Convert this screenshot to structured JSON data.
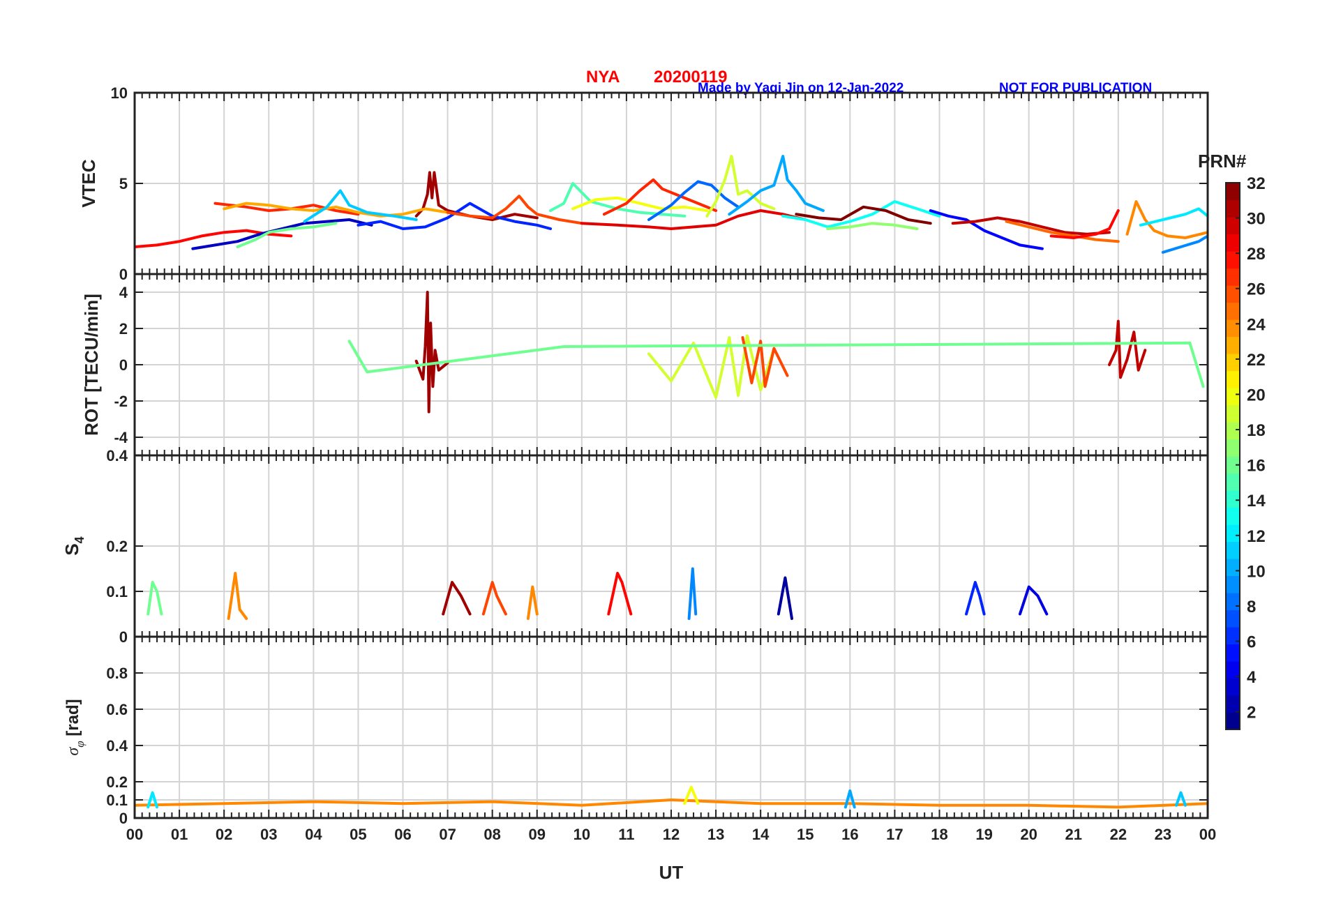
{
  "header": {
    "station": "NYA",
    "date": "20200119",
    "credit": "Made by Yaqi Jin on 12-Jan-2022",
    "notice": "NOT FOR PUBLICATION",
    "title_color": "#ff0000",
    "credit_color": "#0000ff"
  },
  "colorbar": {
    "title": "PRN#",
    "ticks": [
      "2",
      "4",
      "6",
      "8",
      "10",
      "12",
      "14",
      "16",
      "18",
      "20",
      "22",
      "24",
      "26",
      "28",
      "30",
      "32"
    ],
    "range": [
      1,
      32
    ],
    "colormap": "jet"
  },
  "x_axis": {
    "label": "UT",
    "ticks": [
      "00",
      "01",
      "02",
      "03",
      "04",
      "05",
      "06",
      "07",
      "08",
      "09",
      "10",
      "11",
      "12",
      "13",
      "14",
      "15",
      "16",
      "17",
      "18",
      "19",
      "20",
      "21",
      "22",
      "23",
      "00"
    ],
    "range_hours": [
      0,
      24
    ]
  },
  "chart_data": [
    {
      "type": "line",
      "id": "vtec",
      "ylabel": "VTEC",
      "ylim": [
        0,
        10
      ],
      "yticks": [
        "0",
        "5",
        "10"
      ],
      "grid": true,
      "series": [
        {
          "prn": 31,
          "x": [
            6.3,
            6.45,
            6.55,
            6.6,
            6.65,
            6.7,
            6.8,
            7.0,
            7.5,
            8.0,
            8.5,
            9.0
          ],
          "y": [
            3.2,
            3.6,
            4.4,
            5.6,
            4.2,
            5.6,
            3.8,
            3.5,
            3.2,
            3.0,
            3.3,
            3.1
          ]
        },
        {
          "prn": 28,
          "x": [
            0.0,
            0.5,
            1.0,
            1.5,
            2.0,
            2.5,
            3.0,
            3.5
          ],
          "y": [
            1.5,
            1.6,
            1.8,
            2.1,
            2.3,
            2.4,
            2.2,
            2.1
          ]
        },
        {
          "prn": 27,
          "x": [
            1.8,
            2.5,
            3.0,
            3.5,
            4.0,
            4.5,
            5.0
          ],
          "y": [
            3.9,
            3.7,
            3.5,
            3.6,
            3.8,
            3.5,
            3.3
          ]
        },
        {
          "prn": 23,
          "x": [
            2.0,
            2.5,
            3.0,
            3.5,
            4.0,
            4.5,
            5.0,
            5.5,
            6.0,
            6.5,
            7.0
          ],
          "y": [
            3.6,
            3.9,
            3.8,
            3.6,
            3.5,
            3.7,
            3.4,
            3.2,
            3.3,
            3.6,
            3.4
          ]
        },
        {
          "prn": 3,
          "x": [
            1.3,
            1.8,
            2.3,
            2.8,
            3.3,
            3.8,
            4.3,
            4.8,
            5.3
          ],
          "y": [
            1.4,
            1.6,
            1.8,
            2.2,
            2.5,
            2.8,
            2.9,
            3.0,
            2.7
          ]
        },
        {
          "prn": 11,
          "x": [
            3.8,
            4.3,
            4.6,
            4.8,
            5.2,
            5.8,
            6.3
          ],
          "y": [
            2.9,
            3.7,
            4.6,
            3.8,
            3.4,
            3.2,
            3.0
          ]
        },
        {
          "prn": 16,
          "x": [
            2.3,
            2.7,
            3.0,
            3.5,
            4.0,
            4.5
          ],
          "y": [
            1.5,
            1.9,
            2.3,
            2.5,
            2.6,
            2.8
          ]
        },
        {
          "prn": 6,
          "x": [
            5.0,
            5.5,
            6.0,
            6.5,
            7.0,
            7.5,
            8.0,
            8.5,
            9.0,
            9.3
          ],
          "y": [
            2.7,
            2.9,
            2.5,
            2.6,
            3.1,
            3.9,
            3.2,
            2.9,
            2.7,
            2.5
          ]
        },
        {
          "prn": 26,
          "x": [
            7.0,
            7.5,
            8.0,
            8.3,
            8.6,
            8.8,
            9.0,
            9.5,
            10.0
          ],
          "y": [
            3.4,
            3.2,
            3.1,
            3.6,
            4.3,
            3.7,
            3.3,
            3.0,
            2.8
          ]
        },
        {
          "prn": 15,
          "x": [
            9.3,
            9.6,
            9.8,
            10.2,
            10.8,
            11.3,
            11.8,
            12.3
          ],
          "y": [
            3.5,
            3.9,
            5.0,
            4.0,
            3.6,
            3.4,
            3.3,
            3.2
          ]
        },
        {
          "prn": 20,
          "x": [
            9.8,
            10.3,
            10.8,
            11.3,
            11.8,
            12.3,
            12.8
          ],
          "y": [
            3.6,
            4.1,
            4.2,
            3.9,
            3.6,
            3.7,
            3.5
          ]
        },
        {
          "prn": 27,
          "x": [
            10.5,
            11.0,
            11.3,
            11.6,
            11.8,
            12.1,
            12.6,
            13.0
          ],
          "y": [
            3.3,
            3.9,
            4.6,
            5.2,
            4.7,
            4.4,
            3.9,
            3.5
          ]
        },
        {
          "prn": 8,
          "x": [
            11.5,
            12.0,
            12.3,
            12.6,
            12.9,
            13.2,
            13.5
          ],
          "y": [
            3.0,
            3.8,
            4.5,
            5.1,
            4.9,
            4.2,
            3.7
          ]
        },
        {
          "prn": 19,
          "x": [
            12.8,
            13.0,
            13.2,
            13.35,
            13.5,
            13.7,
            14.0,
            14.3
          ],
          "y": [
            3.2,
            4.0,
            5.2,
            6.5,
            4.4,
            4.6,
            3.9,
            3.6
          ]
        },
        {
          "prn": 10,
          "x": [
            13.3,
            13.7,
            14.0,
            14.3,
            14.5,
            14.6,
            14.8,
            15.0,
            15.4
          ],
          "y": [
            3.3,
            4.0,
            4.6,
            4.9,
            6.5,
            5.2,
            4.6,
            3.9,
            3.5
          ]
        },
        {
          "prn": 29,
          "x": [
            10.0,
            10.8,
            11.5,
            12.0,
            12.5,
            13.0,
            13.5,
            14.0,
            14.5,
            15.0
          ],
          "y": [
            2.8,
            2.7,
            2.6,
            2.5,
            2.6,
            2.7,
            3.2,
            3.5,
            3.3,
            3.0
          ]
        },
        {
          "prn": 13,
          "x": [
            14.5,
            15.0,
            15.5,
            16.0,
            16.5,
            17.0,
            17.5,
            18.0
          ],
          "y": [
            3.2,
            3.0,
            2.6,
            2.9,
            3.3,
            4.0,
            3.6,
            3.2
          ]
        },
        {
          "prn": 32,
          "x": [
            14.8,
            15.3,
            15.8,
            16.3,
            16.8,
            17.3,
            17.8
          ],
          "y": [
            3.3,
            3.1,
            3.0,
            3.7,
            3.5,
            3.0,
            2.8
          ]
        },
        {
          "prn": 17,
          "x": [
            15.5,
            16.0,
            16.5,
            17.0,
            17.5
          ],
          "y": [
            2.5,
            2.6,
            2.8,
            2.7,
            2.5
          ]
        },
        {
          "prn": 5,
          "x": [
            17.8,
            18.2,
            18.6,
            19.0,
            19.4,
            19.8,
            20.3
          ],
          "y": [
            3.5,
            3.2,
            3.0,
            2.4,
            2.0,
            1.6,
            1.4
          ]
        },
        {
          "prn": 30,
          "x": [
            18.3,
            18.8,
            19.3,
            19.8,
            20.3,
            20.8,
            21.3,
            21.8
          ],
          "y": [
            2.8,
            2.9,
            3.1,
            2.9,
            2.6,
            2.3,
            2.2,
            2.3
          ]
        },
        {
          "prn": 25,
          "x": [
            19.5,
            20.0,
            20.5,
            21.0,
            21.5,
            22.0
          ],
          "y": [
            2.9,
            2.6,
            2.3,
            2.1,
            1.9,
            1.8
          ]
        },
        {
          "prn": 28,
          "x": [
            20.5,
            21.0,
            21.5,
            21.8,
            22.0
          ],
          "y": [
            2.1,
            2.0,
            2.2,
            2.5,
            3.5
          ]
        },
        {
          "prn": 24,
          "x": [
            22.2,
            22.4,
            22.6,
            22.8,
            23.1,
            23.5,
            24.0
          ],
          "y": [
            2.2,
            4.0,
            3.0,
            2.4,
            2.1,
            2.0,
            2.3
          ]
        },
        {
          "prn": 9,
          "x": [
            23.0,
            23.4,
            23.8,
            24.0
          ],
          "y": [
            1.2,
            1.5,
            1.8,
            2.1
          ]
        },
        {
          "prn": 12,
          "x": [
            22.5,
            23.0,
            23.5,
            23.8,
            24.0
          ],
          "y": [
            2.7,
            3.0,
            3.3,
            3.6,
            3.2
          ]
        }
      ]
    },
    {
      "type": "line",
      "id": "rot",
      "ylabel": "ROT [TECU/min]",
      "ylim": [
        -5,
        5
      ],
      "yticks": [
        "-4",
        "-2",
        "0",
        "2",
        "4"
      ],
      "grid": true,
      "series": [
        {
          "prn": 31,
          "x": [
            6.3,
            6.45,
            6.5,
            6.55,
            6.58,
            6.62,
            6.67,
            6.72,
            6.8,
            7.0
          ],
          "y": [
            0.2,
            -0.8,
            1.0,
            4.0,
            -2.6,
            2.3,
            -1.2,
            0.8,
            -0.3,
            0.1
          ]
        },
        {
          "prn": 30,
          "x": [
            21.8,
            21.95,
            22.0,
            22.05,
            22.2,
            22.35,
            22.45,
            22.6
          ],
          "y": [
            0.0,
            0.8,
            2.4,
            -0.7,
            0.3,
            1.8,
            -0.3,
            0.8
          ]
        },
        {
          "prn": 19,
          "x": [
            11.5,
            12.0,
            12.5,
            13.0,
            13.3,
            13.5,
            13.7,
            14.0,
            14.3
          ],
          "y": [
            0.6,
            -0.9,
            1.2,
            -1.8,
            1.5,
            -1.7,
            1.6,
            -1.4,
            0.9
          ]
        },
        {
          "prn": 26,
          "x": [
            13.6,
            13.8,
            14.0,
            14.1,
            14.3,
            14.6
          ],
          "y": [
            1.5,
            -1.0,
            1.3,
            -1.2,
            0.9,
            -0.6
          ]
        },
        {
          "prn": 16,
          "x": [
            4.8,
            5.2,
            9.6,
            23.6,
            23.9
          ],
          "y": [
            1.3,
            -0.4,
            1.0,
            1.2,
            -1.2
          ]
        }
      ]
    },
    {
      "type": "line",
      "id": "s4",
      "ylabel": "S4",
      "ylim": [
        0,
        0.4
      ],
      "yticks": [
        "0",
        "0.1",
        "0.2",
        "0.4"
      ],
      "grid": true,
      "series": [
        {
          "prn": 16,
          "x": [
            0.3,
            0.4,
            0.5,
            0.6
          ],
          "y": [
            0.05,
            0.12,
            0.1,
            0.05
          ]
        },
        {
          "prn": 24,
          "x": [
            2.1,
            2.25,
            2.35,
            2.5
          ],
          "y": [
            0.04,
            0.14,
            0.06,
            0.04
          ]
        },
        {
          "prn": 31,
          "x": [
            6.9,
            7.1,
            7.3,
            7.5
          ],
          "y": [
            0.05,
            0.12,
            0.09,
            0.05
          ]
        },
        {
          "prn": 26,
          "x": [
            7.8,
            8.0,
            8.1,
            8.3
          ],
          "y": [
            0.05,
            0.12,
            0.09,
            0.05
          ]
        },
        {
          "prn": 24,
          "x": [
            8.8,
            8.9,
            9.0
          ],
          "y": [
            0.04,
            0.11,
            0.05
          ]
        },
        {
          "prn": 28,
          "x": [
            10.6,
            10.8,
            10.9,
            11.1
          ],
          "y": [
            0.05,
            0.14,
            0.12,
            0.05
          ]
        },
        {
          "prn": 9,
          "x": [
            12.4,
            12.48,
            12.55
          ],
          "y": [
            0.04,
            0.15,
            0.05
          ]
        },
        {
          "prn": 2,
          "x": [
            14.4,
            14.55,
            14.7
          ],
          "y": [
            0.05,
            0.13,
            0.04
          ]
        },
        {
          "prn": 6,
          "x": [
            18.6,
            18.8,
            18.9,
            19.0
          ],
          "y": [
            0.05,
            0.12,
            0.09,
            0.05
          ]
        },
        {
          "prn": 4,
          "x": [
            19.8,
            20.0,
            20.2,
            20.4
          ],
          "y": [
            0.05,
            0.11,
            0.09,
            0.05
          ]
        }
      ]
    },
    {
      "type": "line",
      "id": "sigma_phi",
      "ylabel": "σφ [rad]",
      "ylim": [
        0,
        1
      ],
      "yticks": [
        "0",
        "0.1",
        "0.2",
        "0.4",
        "0.6",
        "0.8"
      ],
      "grid": true,
      "series": [
        {
          "prn": 24,
          "x": [
            0.0,
            2.0,
            4.0,
            6.0,
            8.0,
            10.0,
            12.0,
            14.0,
            16.0,
            18.0,
            20.0,
            22.0,
            24.0
          ],
          "y": [
            0.07,
            0.08,
            0.09,
            0.08,
            0.09,
            0.07,
            0.1,
            0.08,
            0.08,
            0.07,
            0.07,
            0.06,
            0.08
          ]
        },
        {
          "prn": 12,
          "x": [
            0.3,
            0.4,
            0.5
          ],
          "y": [
            0.06,
            0.14,
            0.06
          ]
        },
        {
          "prn": 20,
          "x": [
            12.3,
            12.45,
            12.6
          ],
          "y": [
            0.08,
            0.17,
            0.08
          ]
        },
        {
          "prn": 10,
          "x": [
            15.9,
            16.0,
            16.1
          ],
          "y": [
            0.06,
            0.15,
            0.06
          ]
        },
        {
          "prn": 11,
          "x": [
            23.3,
            23.4,
            23.5
          ],
          "y": [
            0.07,
            0.14,
            0.07
          ]
        }
      ]
    }
  ]
}
